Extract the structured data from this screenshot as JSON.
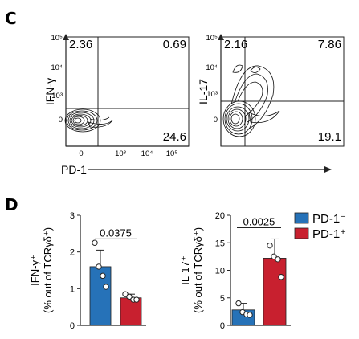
{
  "panel_c": {
    "letter": "C",
    "x_title": "PD-1",
    "x_ticks": [
      "0",
      "10³",
      "10⁴",
      "10⁵"
    ],
    "left_plot": {
      "y_title": "IFN-γ",
      "y_ticks": [
        "10⁵",
        "10⁴",
        "10³",
        "0"
      ],
      "quadrants": {
        "top_left": "2.36",
        "top_right": "0.69",
        "bottom_right": "24.6"
      }
    },
    "right_plot": {
      "y_title": "IL-17",
      "y_ticks": [
        "10⁵",
        "10⁴",
        "10³",
        "0"
      ],
      "quadrants": {
        "top_left": "2.16",
        "top_right": "7.86",
        "bottom_right": "19.1"
      }
    }
  },
  "panel_d": {
    "letter": "D",
    "legend": [
      {
        "label": "PD-1⁻",
        "color": "#2672b8"
      },
      {
        "label": "PD-1⁺",
        "color": "#c8202f"
      }
    ]
  },
  "chart_data": [
    {
      "type": "bar",
      "categories": [
        "PD-1⁻",
        "PD-1⁺"
      ],
      "ylabel_line1": "IFN-γ⁺",
      "ylabel_line2": "(% out of TCRγδ⁺)",
      "ylim": [
        0,
        3
      ],
      "yticks": [
        "0",
        "1",
        "2",
        "3"
      ],
      "means": [
        1.6,
        0.75
      ],
      "errors": [
        0.45,
        0.1
      ],
      "points": [
        [
          2.25,
          1.6,
          1.35,
          1.05
        ],
        [
          0.85,
          0.78,
          0.7,
          0.7
        ]
      ],
      "colors": [
        "#2672b8",
        "#c8202f"
      ],
      "pvalue": "0.0375"
    },
    {
      "type": "bar",
      "categories": [
        "PD-1⁻",
        "PD-1⁺"
      ],
      "ylabel_line1": "IL-17⁺",
      "ylabel_line2": "(% out of TCRγδ⁺)",
      "ylim": [
        0,
        20
      ],
      "yticks": [
        "0",
        "5",
        "10",
        "15",
        "20"
      ],
      "means": [
        2.8,
        12.2
      ],
      "errors": [
        1.2,
        3.5
      ],
      "points": [
        [
          4.0,
          2.4,
          2.0,
          1.9
        ],
        [
          14.5,
          12.5,
          12.0,
          8.8
        ]
      ],
      "colors": [
        "#2672b8",
        "#c8202f"
      ],
      "pvalue": "0.0025"
    }
  ]
}
